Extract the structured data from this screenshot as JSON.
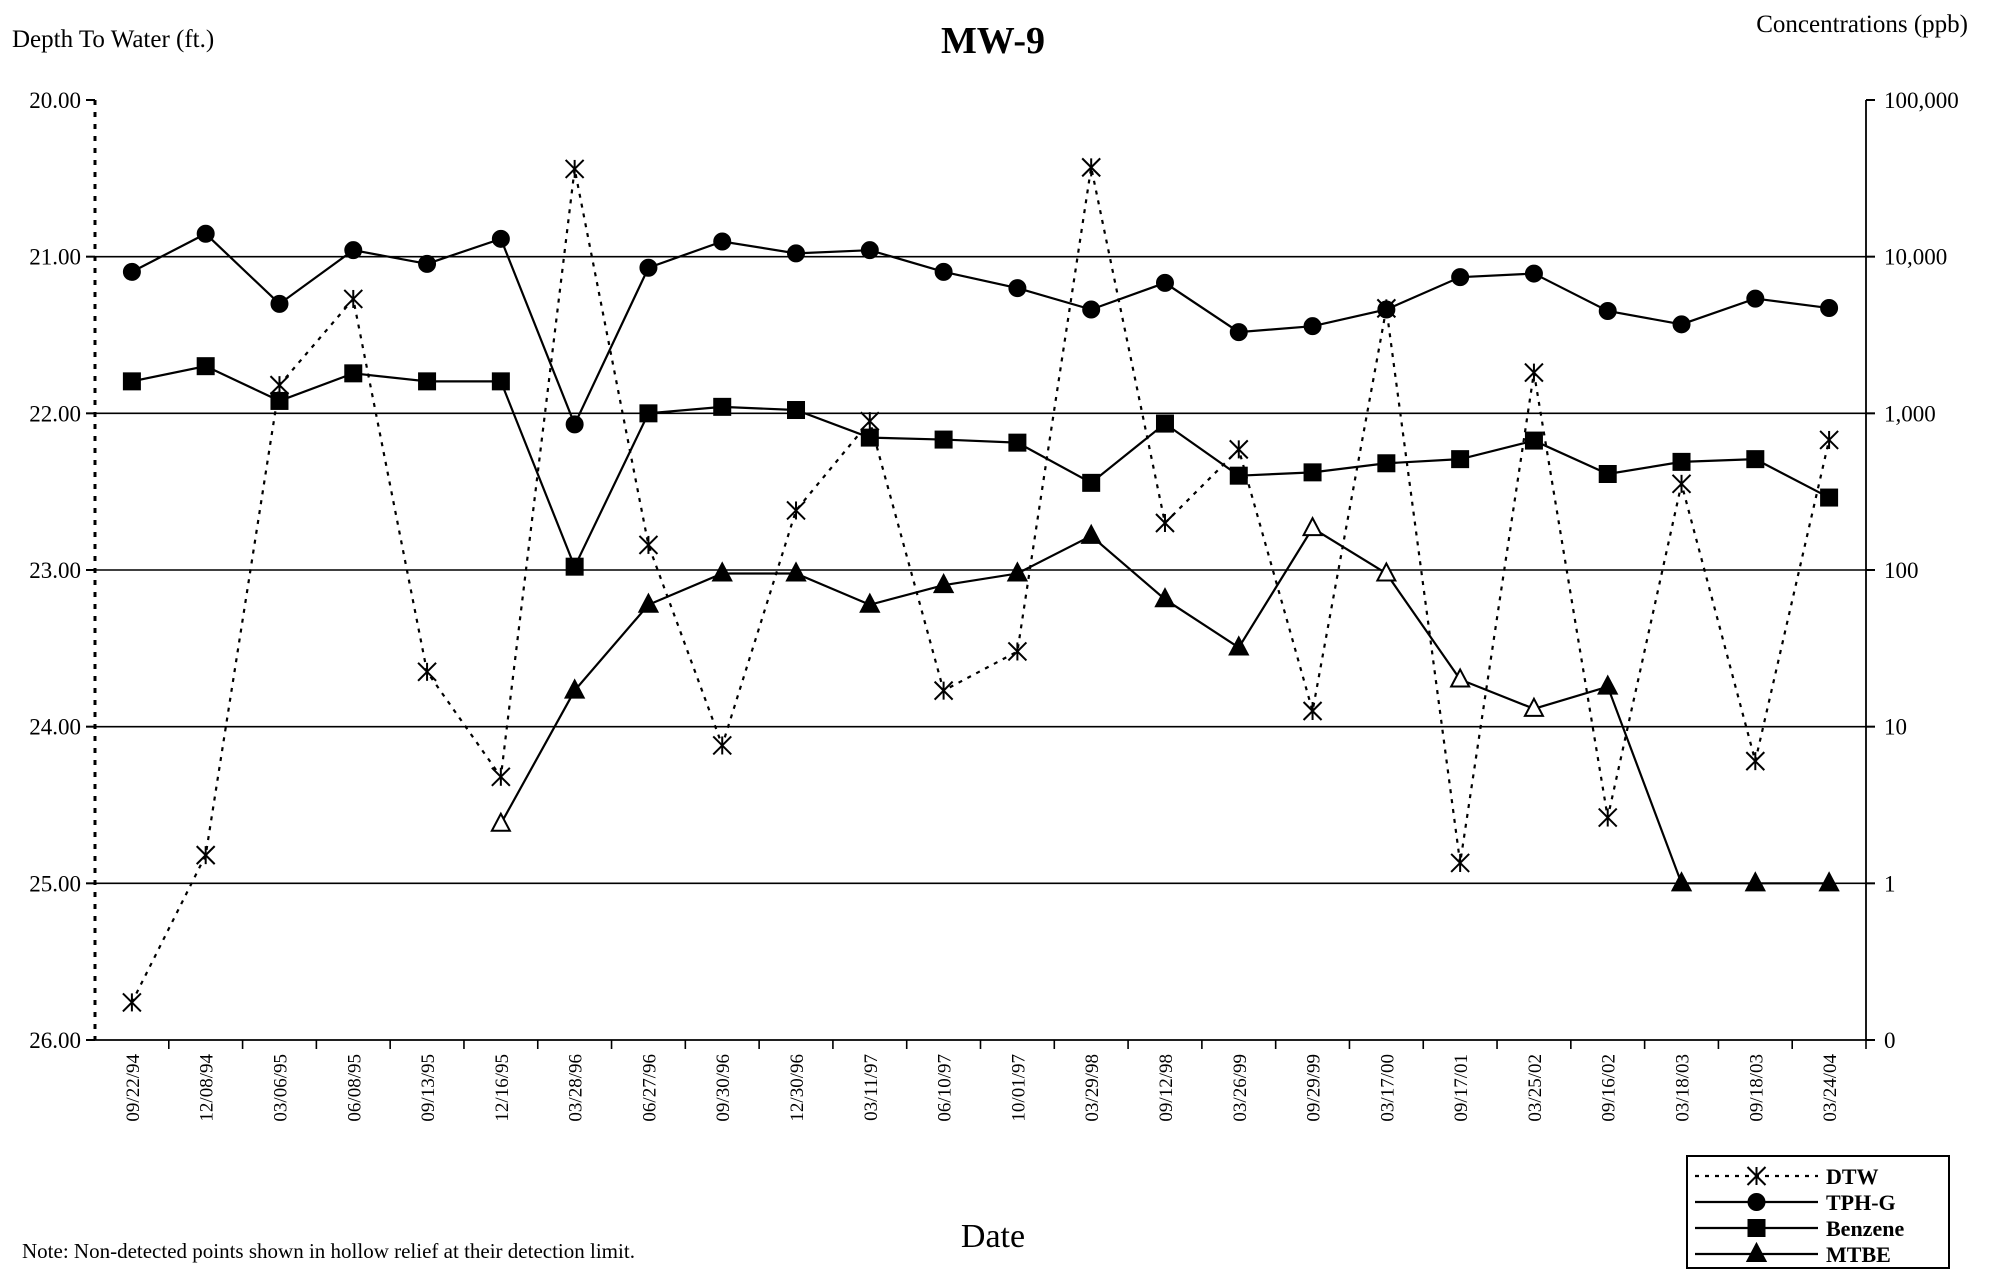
{
  "chart_data": {
    "type": "line",
    "title": "MW-9",
    "ylabel_left": "Depth To Water (ft.)",
    "ylabel_right": "Concentrations (ppb)",
    "xlabel": "Date",
    "note": "Note: Non-detected points shown in hollow relief at their detection limit.",
    "categories": [
      "09/22/94",
      "12/08/94",
      "03/06/95",
      "06/08/95",
      "09/13/95",
      "12/16/95",
      "03/28/96",
      "06/27/96",
      "09/30/96",
      "12/30/96",
      "03/11/97",
      "06/10/97",
      "10/01/97",
      "03/29/98",
      "09/12/98",
      "03/26/99",
      "09/29/99",
      "03/17/00",
      "09/17/01",
      "03/25/02",
      "09/16/02",
      "03/18/03",
      "09/18/03",
      "03/24/04"
    ],
    "left_axis": {
      "ylim": [
        20.0,
        26.0
      ],
      "inverted": true,
      "ticks": [
        "20.00",
        "21.00",
        "22.00",
        "23.00",
        "24.00",
        "25.00",
        "26.00"
      ]
    },
    "right_axis": {
      "scale": "log",
      "ticks": [
        "100,000",
        "10,000",
        "1,000",
        "100",
        "10",
        "1",
        "0"
      ]
    },
    "grid": "horizontal",
    "legend_position": "bottom-right",
    "series": [
      {
        "name": "DTW",
        "axis": "left",
        "line_style": "dotted",
        "marker": "asterisk",
        "values": [
          25.76,
          24.82,
          21.82,
          21.27,
          23.65,
          24.32,
          20.44,
          22.84,
          24.12,
          22.62,
          22.05,
          23.77,
          23.52,
          20.43,
          22.7,
          22.23,
          23.9,
          21.33,
          24.87,
          21.74,
          24.58,
          22.45,
          24.22,
          22.17
        ],
        "non_detect": []
      },
      {
        "name": "TPH-G",
        "axis": "right",
        "line_style": "solid",
        "marker": "circle",
        "values": [
          8000,
          14000,
          5000,
          11000,
          9000,
          13000,
          850,
          8500,
          12500,
          10500,
          11000,
          8000,
          6300,
          4600,
          6800,
          3300,
          3600,
          4600,
          7400,
          7800,
          4500,
          3700,
          5400,
          4700
        ],
        "non_detect": []
      },
      {
        "name": "Benzene",
        "axis": "right",
        "line_style": "solid",
        "marker": "square",
        "values": [
          1600,
          2000,
          1200,
          1800,
          1600,
          1600,
          105,
          1000,
          1100,
          1050,
          700,
          680,
          650,
          360,
          860,
          400,
          420,
          480,
          510,
          670,
          410,
          490,
          510,
          290
        ],
        "non_detect": []
      },
      {
        "name": "MTBE",
        "axis": "right",
        "line_style": "solid",
        "marker": "triangle",
        "values": [
          null,
          null,
          null,
          null,
          null,
          2.4,
          17,
          60,
          95,
          95,
          60,
          80,
          95,
          165,
          65,
          32,
          185,
          95,
          20,
          13,
          18,
          1,
          1,
          0.9
        ],
        "non_detect": [
          5,
          16,
          17,
          18,
          19
        ]
      }
    ]
  }
}
